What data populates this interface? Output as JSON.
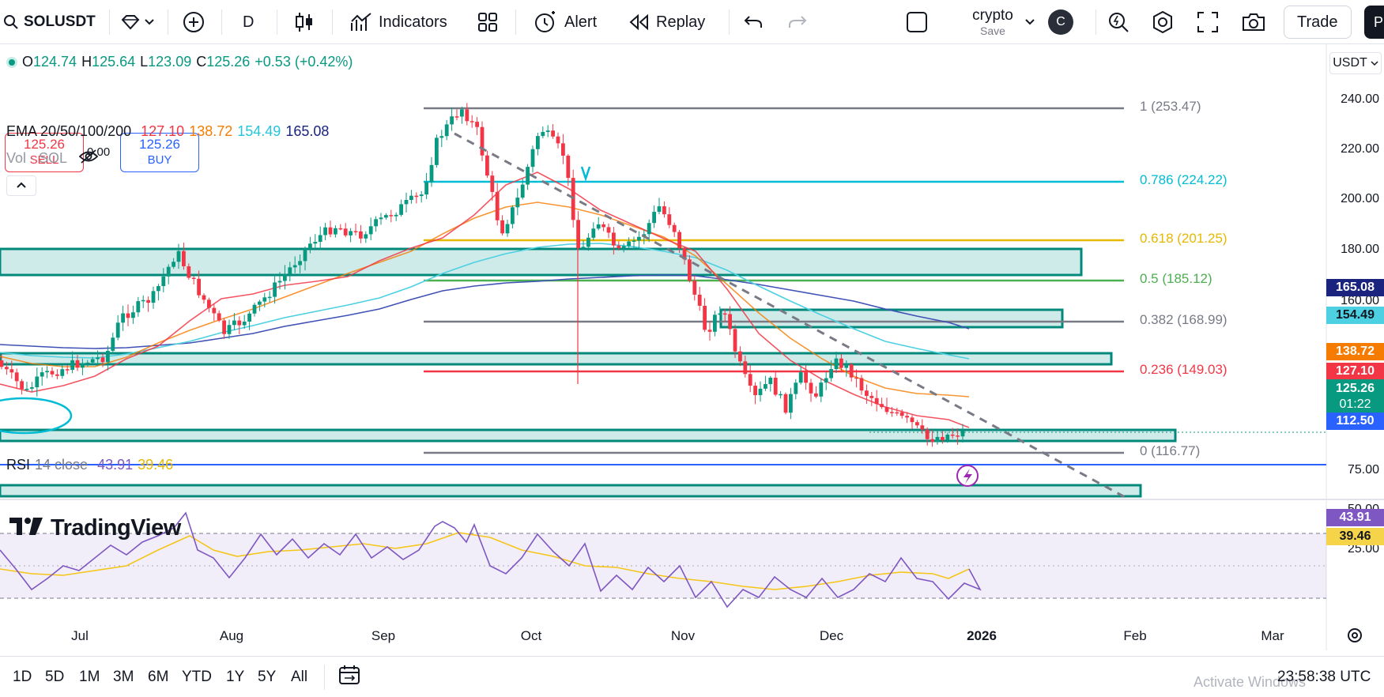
{
  "toolbar": {
    "symbol": "SOLUSDT",
    "interval": "D",
    "indicators_label": "Indicators",
    "alert_label": "Alert",
    "replay_label": "Replay",
    "layout_name": "crypto",
    "layout_save": "Save",
    "avatar_letter": "C",
    "trade_label": "Trade",
    "profile_letter": "P"
  },
  "legend": {
    "open_label": "O",
    "open": "124.74",
    "high_label": "H",
    "high": "125.64",
    "low_label": "L",
    "low": "123.09",
    "close_label": "C",
    "close": "125.26",
    "change": "+0.53 (+0.42%)",
    "sell_price": "125.26",
    "sell_label": "SELL",
    "spread": "0.00",
    "buy_price": "125.26",
    "buy_label": "BUY",
    "ema_label": "EMA 20/50/100/200",
    "ema20": "127.10",
    "ema50": "138.72",
    "ema100": "154.49",
    "ema200": "165.08",
    "vol_label": "Vol · SOL",
    "rsi_label": "RSI",
    "rsi_params": "14 close",
    "rsi_value": "43.91",
    "rsi_ma": "39.46"
  },
  "currency": "USDT",
  "price_axis": {
    "ticks": [
      "240.00",
      "220.00",
      "200.00",
      "180.00",
      "160.00"
    ],
    "tags": {
      "ema200": "165.08",
      "ema100": "154.49",
      "ema50": "138.72",
      "ema20": "127.10",
      "last": "125.26",
      "countdown": "01:22",
      "support": "112.50"
    },
    "rsi_ticks": [
      "75.00",
      "50.00",
      "25.00"
    ],
    "rsi_tags": {
      "rsi": "43.91",
      "rsi_ma": "39.46"
    }
  },
  "fib_levels": [
    {
      "label": "1 (253.47)",
      "color": "#787b86"
    },
    {
      "label": "0.786 (224.22)",
      "color": "#00bcd4"
    },
    {
      "label": "0.618 (201.25)",
      "color": "#e6b800"
    },
    {
      "label": "0.5 (185.12)",
      "color": "#4caf50"
    },
    {
      "label": "0.382 (168.99)",
      "color": "#787b86"
    },
    {
      "label": "0.236 (149.03)",
      "color": "#f23645"
    },
    {
      "label": "0 (116.77)",
      "color": "#787b86"
    }
  ],
  "time_axis": [
    "Jul",
    "Aug",
    "Sep",
    "Oct",
    "Nov",
    "Dec",
    "2026",
    "Feb",
    "Mar"
  ],
  "watermark": "TradingView",
  "ranges": [
    "1D",
    "5D",
    "1M",
    "3M",
    "6M",
    "YTD",
    "1Y",
    "5Y",
    "All"
  ],
  "clock": "23:58:38 UTC",
  "activate_windows": "Activate Windows",
  "colors": {
    "up": "#089981",
    "down": "#f23645",
    "accent": "#2962ff",
    "zone": "#26a69a"
  }
}
